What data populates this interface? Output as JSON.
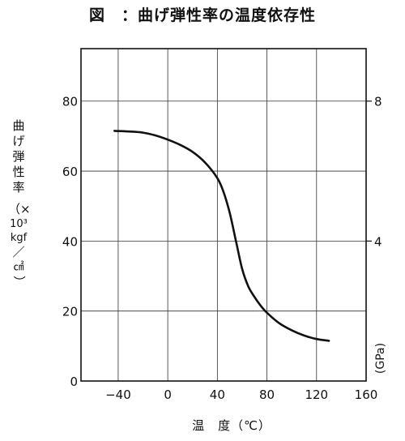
{
  "figure": {
    "title": "図　：曲げ弾性率の温度依存性",
    "ylabel_chars": [
      "曲",
      "げ",
      "弾",
      "性",
      "率",
      "（×",
      "10³",
      "kgf",
      "／",
      "㎠",
      "）"
    ]
  },
  "chart_data": {
    "type": "line",
    "title": "図　：曲げ弾性率の温度依存性",
    "xlabel": "温　度（℃）",
    "ylabel": "曲げ弾性率（×10³ kgf／㎠）",
    "y2label": "(GPa)",
    "xlim": [
      -70,
      160
    ],
    "ylim": [
      0,
      95
    ],
    "y2lim": [
      0,
      9.5
    ],
    "x_ticks": [
      -40,
      0,
      40,
      80,
      120,
      160
    ],
    "x_tick_labels": [
      "−40",
      "0",
      "40",
      "80",
      "120",
      "160"
    ],
    "y_ticks": [
      0,
      20,
      40,
      60,
      80
    ],
    "y_tick_labels": [
      "0",
      "20",
      "40",
      "60",
      "80"
    ],
    "y2_ticks": [
      4,
      8
    ],
    "y2_tick_labels": [
      "4",
      "8"
    ],
    "grid": true,
    "series": [
      {
        "x": [
          -43,
          -30,
          -20,
          -10,
          0,
          10,
          20,
          30,
          40,
          45,
          50,
          55,
          60,
          65,
          70,
          75,
          80,
          90,
          100,
          110,
          120,
          130
        ],
        "y": [
          71.5,
          71.3,
          71,
          70.2,
          69,
          67.5,
          65.5,
          62.5,
          58,
          54,
          48,
          40,
          32,
          27,
          24,
          21.5,
          19.5,
          16.5,
          14.5,
          13,
          12,
          11.5
        ]
      }
    ]
  }
}
